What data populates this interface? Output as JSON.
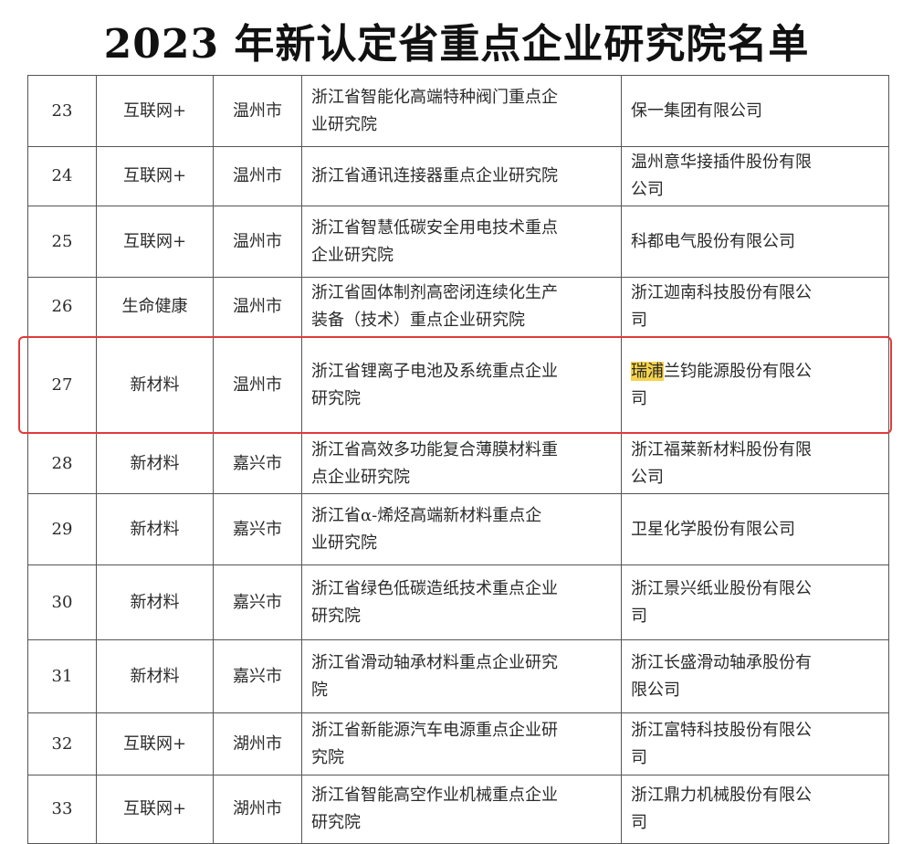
{
  "title": "2023 年新认定省重点企业研究院名单",
  "highlight_color": "#f5d34a",
  "box_color": "#e03b3b",
  "rows": [
    {
      "no": "23",
      "field": "互联网+",
      "city": "温州市",
      "institute": [
        "浙江省智能化高端特种阀门重点企",
        "业研究院"
      ],
      "company": [
        "保一集团有限公司"
      ]
    },
    {
      "no": "24",
      "field": "互联网+",
      "city": "温州市",
      "institute": [
        "浙江省通讯连接器重点企业研究院"
      ],
      "company": [
        "温州意华接插件股份有限",
        "公司"
      ]
    },
    {
      "no": "25",
      "field": "互联网+",
      "city": "温州市",
      "institute": [
        "浙江省智慧低碳安全用电技术重点",
        "企业研究院"
      ],
      "company": [
        "科都电气股份有限公司"
      ]
    },
    {
      "no": "26",
      "field": "生命健康",
      "city": "温州市",
      "institute": [
        "浙江省固体制剂高密闭连续化生产",
        "装备（技术）重点企业研究院"
      ],
      "company": [
        "浙江迦南科技股份有限公",
        "司"
      ]
    },
    {
      "no": "27",
      "field": "新材料",
      "city": "温州市",
      "institute": [
        "浙江省锂离子电池及系统重点企业",
        "研究院"
      ],
      "company_highlight": "瑞浦",
      "company": [
        "兰钧能源股份有限公",
        "司"
      ]
    },
    {
      "no": "28",
      "field": "新材料",
      "city": "嘉兴市",
      "institute": [
        "浙江省高效多功能复合薄膜材料重",
        "点企业研究院"
      ],
      "company": [
        "浙江福莱新材料股份有限",
        "公司"
      ]
    },
    {
      "no": "29",
      "field": "新材料",
      "city": "嘉兴市",
      "institute": [
        "浙江省α-烯烃高端新材料重点企",
        "业研究院"
      ],
      "company": [
        "卫星化学股份有限公司"
      ]
    },
    {
      "no": "30",
      "field": "新材料",
      "city": "嘉兴市",
      "institute": [
        "浙江省绿色低碳造纸技术重点企业",
        "研究院"
      ],
      "company": [
        "浙江景兴纸业股份有限公",
        "司"
      ]
    },
    {
      "no": "31",
      "field": "新材料",
      "city": "嘉兴市",
      "institute": [
        "浙江省滑动轴承材料重点企业研究",
        "院"
      ],
      "company": [
        "浙江长盛滑动轴承股份有",
        "限公司"
      ]
    },
    {
      "no": "32",
      "field": "互联网+",
      "city": "湖州市",
      "institute": [
        "浙江省新能源汽车电源重点企业研",
        "究院"
      ],
      "company": [
        "浙江富特科技股份有限公",
        "司"
      ]
    },
    {
      "no": "33",
      "field": "互联网+",
      "city": "湖州市",
      "institute": [
        "浙江省智能高空作业机械重点企业",
        "研究院"
      ],
      "company": [
        "浙江鼎力机械股份有限公",
        "司"
      ]
    }
  ]
}
